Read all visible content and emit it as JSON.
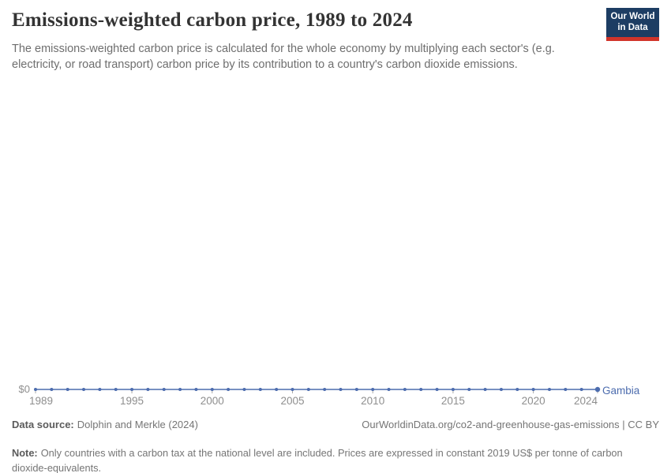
{
  "header": {
    "title": "Emissions-weighted carbon price, 1989 to 2024",
    "subtitle": "The emissions-weighted carbon price is calculated for the whole economy by multiplying each sector's (e.g. electricity, or road transport) carbon price by its contribution to a country's carbon dioxide emissions.",
    "logo": {
      "line1": "Our World",
      "line2": "in Data",
      "bg_color": "#1d3d63",
      "accent_color": "#d1342a"
    }
  },
  "chart_data": {
    "type": "line",
    "title": "Emissions-weighted carbon price, 1989 to 2024",
    "xlabel": "",
    "ylabel": "",
    "grid": false,
    "legend_position": "end-of-line",
    "y_tick_label": "$0",
    "ylim": [
      0,
      0
    ],
    "x": [
      1989,
      1990,
      1991,
      1992,
      1993,
      1994,
      1995,
      1996,
      1997,
      1998,
      1999,
      2000,
      2001,
      2002,
      2003,
      2004,
      2005,
      2006,
      2007,
      2008,
      2009,
      2010,
      2011,
      2012,
      2013,
      2014,
      2015,
      2016,
      2017,
      2018,
      2019,
      2020,
      2021,
      2022,
      2023,
      2024
    ],
    "x_ticks": [
      1989,
      1995,
      2000,
      2005,
      2010,
      2015,
      2020,
      2024
    ],
    "series": [
      {
        "name": "Gambia",
        "color": "#4c6cae",
        "values": [
          0,
          0,
          0,
          0,
          0,
          0,
          0,
          0,
          0,
          0,
          0,
          0,
          0,
          0,
          0,
          0,
          0,
          0,
          0,
          0,
          0,
          0,
          0,
          0,
          0,
          0,
          0,
          0,
          0,
          0,
          0,
          0,
          0,
          0,
          0,
          0
        ]
      }
    ]
  },
  "footer": {
    "source_label": "Data source:",
    "source_value": "Dolphin and Merkle (2024)",
    "attribution": "OurWorldinData.org/co2-and-greenhouse-gas-emissions | CC BY",
    "note_label": "Note:",
    "note_value": "Only countries with a carbon tax at the national level are included. Prices are expressed in constant 2019 US$ per tonne of carbon dioxide-equivalents."
  }
}
